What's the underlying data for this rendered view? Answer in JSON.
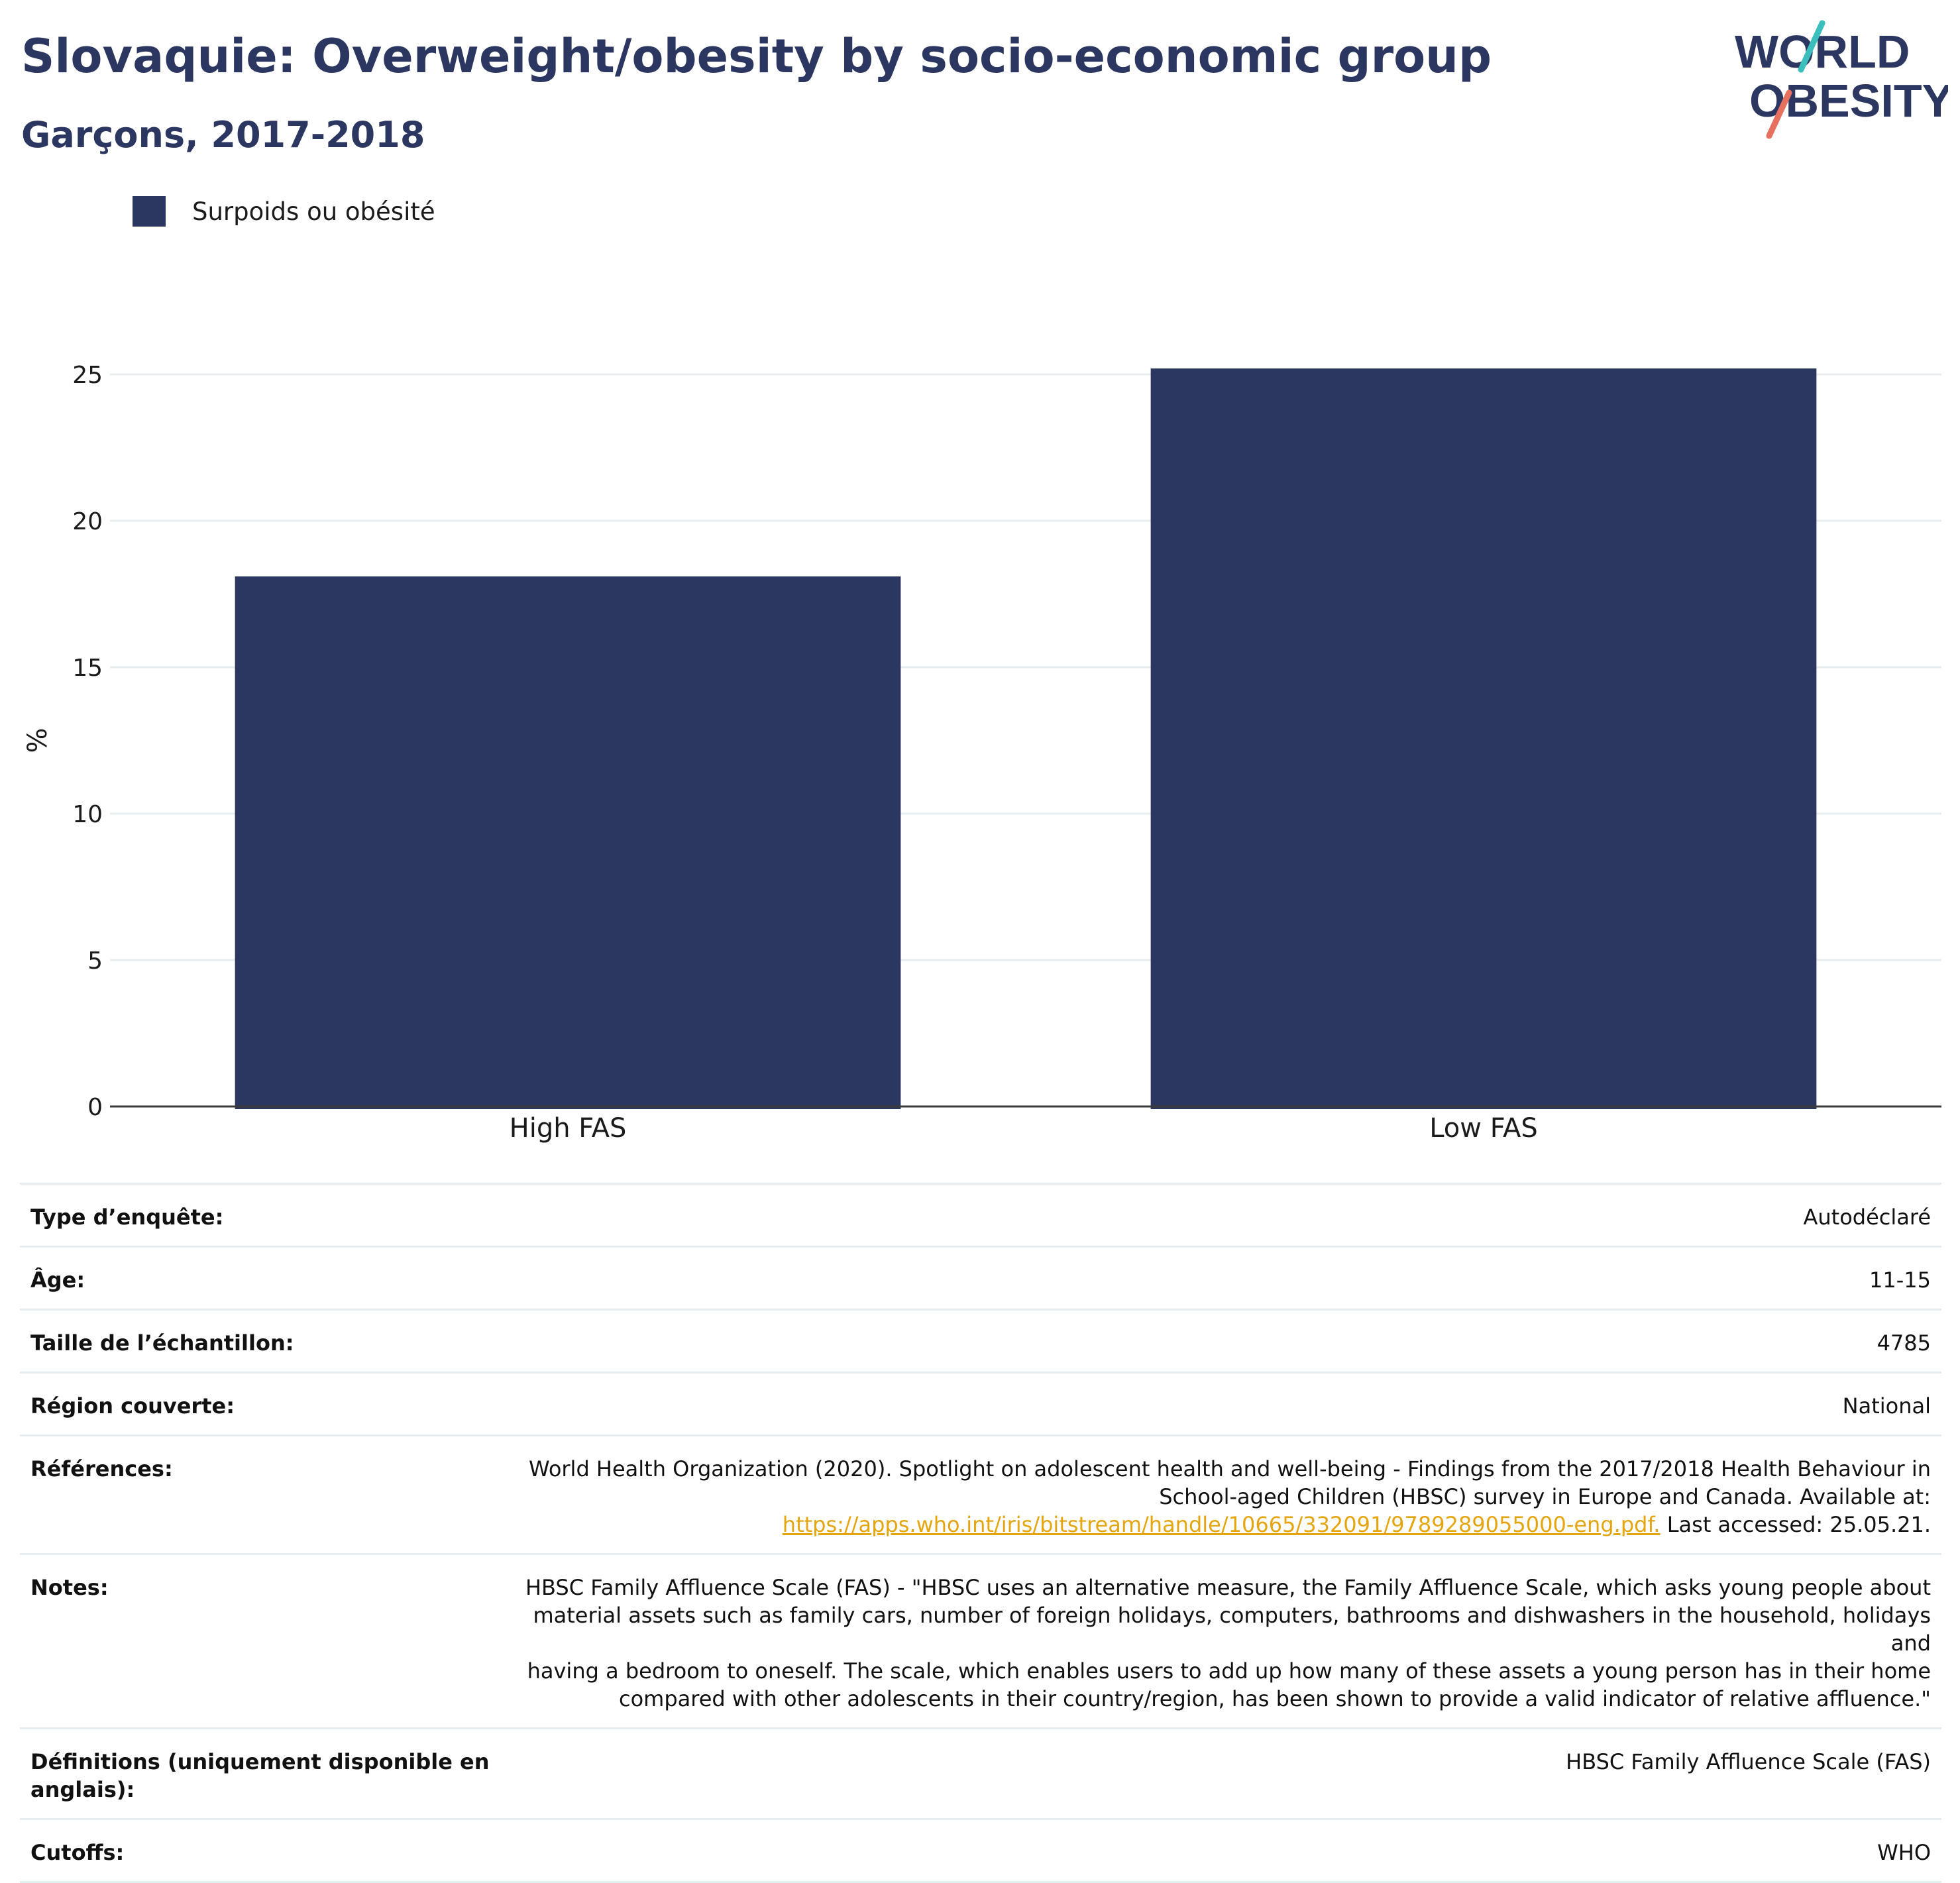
{
  "header": {
    "title": "Slovaquie: Overweight/obesity by socio-economic group",
    "subtitle": "Garçons, 2017-2018",
    "logo_line1": "WORLD",
    "logo_line2": "OBESITY"
  },
  "colors": {
    "bar": "#2b3661",
    "title": "#2b3661",
    "link": "#e5a50f",
    "logo_teal": "#3bbfbd",
    "logo_coral": "#e8705e"
  },
  "legend": {
    "label": "Surpoids ou obésité"
  },
  "chart_data": {
    "type": "bar",
    "categories": [
      "High FAS",
      "Low FAS"
    ],
    "series": [
      {
        "name": "Surpoids ou obésité",
        "values": [
          18.1,
          25.2
        ]
      }
    ],
    "ylabel": "%",
    "xlabel": "",
    "ylim": [
      0,
      25.5
    ],
    "yticks": [
      0,
      5,
      10,
      15,
      20,
      25
    ],
    "grid": true,
    "legend_position": "top-left"
  },
  "meta": {
    "survey_type_label": "Type d’enquête:",
    "survey_type_value": "Autodéclaré",
    "age_label": "Âge:",
    "age_value": "11-15",
    "sample_label": "Taille de l’échantillon:",
    "sample_value": "4785",
    "region_label": "Région couverte:",
    "region_value": "National",
    "references_label": "Références:",
    "references_line1": "World Health Organization (2020). Spotlight on adolescent health and well-being - Findings from the 2017/2018 Health Behaviour in",
    "references_line2": "School-aged Children (HBSC) survey in Europe and Canada. Available at:",
    "references_link": "https://apps.who.int/iris/bitstream/handle/10665/332091/9789289055000-eng.pdf.",
    "references_after": " Last accessed: 25.05.21.",
    "notes_label": "Notes:",
    "notes_line1": "HBSC Family Affluence Scale (FAS) - \"HBSC uses an alternative measure, the Family Affluence Scale, which asks young people about",
    "notes_line2": "material assets such as family cars, number of foreign holidays, computers, bathrooms and dishwashers in the household, holidays and",
    "notes_line3": "having a bedroom to oneself. The scale, which enables users to add up how many of these assets a young person has in their home",
    "notes_line4": "compared with other adolescents in their country/region, has been shown to provide a valid indicator of relative affluence.\"",
    "definitions_label": "Définitions (uniquement disponible en anglais):",
    "definitions_value": "HBSC Family Affluence Scale (FAS)",
    "cutoffs_label": "Cutoffs:",
    "cutoffs_value": "WHO"
  }
}
